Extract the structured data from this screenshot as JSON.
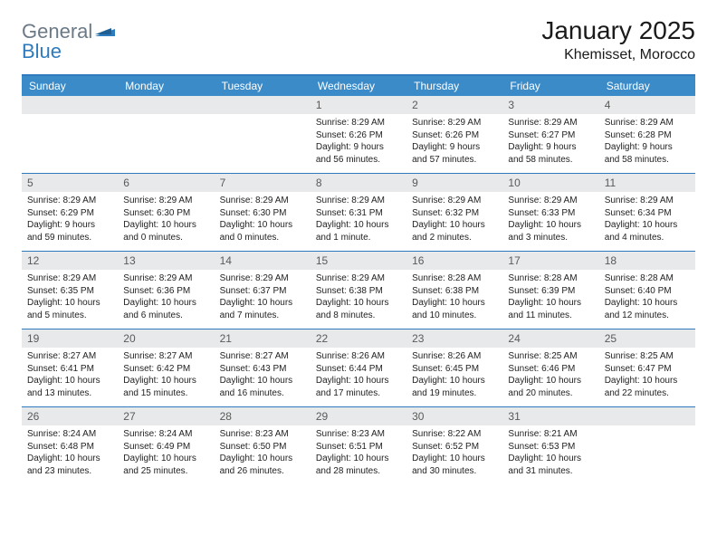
{
  "brand": {
    "part1": "General",
    "part2": "Blue"
  },
  "title": "January 2025",
  "location": "Khemisset, Morocco",
  "colors": {
    "header_bg": "#3b8bc8",
    "border": "#2d7bbd",
    "daynum_bg": "#e7e9eb",
    "text": "#222222",
    "daynum_text": "#5a5a5a",
    "brand_gray": "#6b7a86",
    "brand_blue": "#2d7bbd"
  },
  "weekdays": [
    "Sunday",
    "Monday",
    "Tuesday",
    "Wednesday",
    "Thursday",
    "Friday",
    "Saturday"
  ],
  "weeks": [
    {
      "days": [
        null,
        null,
        null,
        {
          "n": "1",
          "sr": "Sunrise: 8:29 AM",
          "ss": "Sunset: 6:26 PM",
          "d1": "Daylight: 9 hours",
          "d2": "and 56 minutes."
        },
        {
          "n": "2",
          "sr": "Sunrise: 8:29 AM",
          "ss": "Sunset: 6:26 PM",
          "d1": "Daylight: 9 hours",
          "d2": "and 57 minutes."
        },
        {
          "n": "3",
          "sr": "Sunrise: 8:29 AM",
          "ss": "Sunset: 6:27 PM",
          "d1": "Daylight: 9 hours",
          "d2": "and 58 minutes."
        },
        {
          "n": "4",
          "sr": "Sunrise: 8:29 AM",
          "ss": "Sunset: 6:28 PM",
          "d1": "Daylight: 9 hours",
          "d2": "and 58 minutes."
        }
      ]
    },
    {
      "days": [
        {
          "n": "5",
          "sr": "Sunrise: 8:29 AM",
          "ss": "Sunset: 6:29 PM",
          "d1": "Daylight: 9 hours",
          "d2": "and 59 minutes."
        },
        {
          "n": "6",
          "sr": "Sunrise: 8:29 AM",
          "ss": "Sunset: 6:30 PM",
          "d1": "Daylight: 10 hours",
          "d2": "and 0 minutes."
        },
        {
          "n": "7",
          "sr": "Sunrise: 8:29 AM",
          "ss": "Sunset: 6:30 PM",
          "d1": "Daylight: 10 hours",
          "d2": "and 0 minutes."
        },
        {
          "n": "8",
          "sr": "Sunrise: 8:29 AM",
          "ss": "Sunset: 6:31 PM",
          "d1": "Daylight: 10 hours",
          "d2": "and 1 minute."
        },
        {
          "n": "9",
          "sr": "Sunrise: 8:29 AM",
          "ss": "Sunset: 6:32 PM",
          "d1": "Daylight: 10 hours",
          "d2": "and 2 minutes."
        },
        {
          "n": "10",
          "sr": "Sunrise: 8:29 AM",
          "ss": "Sunset: 6:33 PM",
          "d1": "Daylight: 10 hours",
          "d2": "and 3 minutes."
        },
        {
          "n": "11",
          "sr": "Sunrise: 8:29 AM",
          "ss": "Sunset: 6:34 PM",
          "d1": "Daylight: 10 hours",
          "d2": "and 4 minutes."
        }
      ]
    },
    {
      "days": [
        {
          "n": "12",
          "sr": "Sunrise: 8:29 AM",
          "ss": "Sunset: 6:35 PM",
          "d1": "Daylight: 10 hours",
          "d2": "and 5 minutes."
        },
        {
          "n": "13",
          "sr": "Sunrise: 8:29 AM",
          "ss": "Sunset: 6:36 PM",
          "d1": "Daylight: 10 hours",
          "d2": "and 6 minutes."
        },
        {
          "n": "14",
          "sr": "Sunrise: 8:29 AM",
          "ss": "Sunset: 6:37 PM",
          "d1": "Daylight: 10 hours",
          "d2": "and 7 minutes."
        },
        {
          "n": "15",
          "sr": "Sunrise: 8:29 AM",
          "ss": "Sunset: 6:38 PM",
          "d1": "Daylight: 10 hours",
          "d2": "and 8 minutes."
        },
        {
          "n": "16",
          "sr": "Sunrise: 8:28 AM",
          "ss": "Sunset: 6:38 PM",
          "d1": "Daylight: 10 hours",
          "d2": "and 10 minutes."
        },
        {
          "n": "17",
          "sr": "Sunrise: 8:28 AM",
          "ss": "Sunset: 6:39 PM",
          "d1": "Daylight: 10 hours",
          "d2": "and 11 minutes."
        },
        {
          "n": "18",
          "sr": "Sunrise: 8:28 AM",
          "ss": "Sunset: 6:40 PM",
          "d1": "Daylight: 10 hours",
          "d2": "and 12 minutes."
        }
      ]
    },
    {
      "days": [
        {
          "n": "19",
          "sr": "Sunrise: 8:27 AM",
          "ss": "Sunset: 6:41 PM",
          "d1": "Daylight: 10 hours",
          "d2": "and 13 minutes."
        },
        {
          "n": "20",
          "sr": "Sunrise: 8:27 AM",
          "ss": "Sunset: 6:42 PM",
          "d1": "Daylight: 10 hours",
          "d2": "and 15 minutes."
        },
        {
          "n": "21",
          "sr": "Sunrise: 8:27 AM",
          "ss": "Sunset: 6:43 PM",
          "d1": "Daylight: 10 hours",
          "d2": "and 16 minutes."
        },
        {
          "n": "22",
          "sr": "Sunrise: 8:26 AM",
          "ss": "Sunset: 6:44 PM",
          "d1": "Daylight: 10 hours",
          "d2": "and 17 minutes."
        },
        {
          "n": "23",
          "sr": "Sunrise: 8:26 AM",
          "ss": "Sunset: 6:45 PM",
          "d1": "Daylight: 10 hours",
          "d2": "and 19 minutes."
        },
        {
          "n": "24",
          "sr": "Sunrise: 8:25 AM",
          "ss": "Sunset: 6:46 PM",
          "d1": "Daylight: 10 hours",
          "d2": "and 20 minutes."
        },
        {
          "n": "25",
          "sr": "Sunrise: 8:25 AM",
          "ss": "Sunset: 6:47 PM",
          "d1": "Daylight: 10 hours",
          "d2": "and 22 minutes."
        }
      ]
    },
    {
      "days": [
        {
          "n": "26",
          "sr": "Sunrise: 8:24 AM",
          "ss": "Sunset: 6:48 PM",
          "d1": "Daylight: 10 hours",
          "d2": "and 23 minutes."
        },
        {
          "n": "27",
          "sr": "Sunrise: 8:24 AM",
          "ss": "Sunset: 6:49 PM",
          "d1": "Daylight: 10 hours",
          "d2": "and 25 minutes."
        },
        {
          "n": "28",
          "sr": "Sunrise: 8:23 AM",
          "ss": "Sunset: 6:50 PM",
          "d1": "Daylight: 10 hours",
          "d2": "and 26 minutes."
        },
        {
          "n": "29",
          "sr": "Sunrise: 8:23 AM",
          "ss": "Sunset: 6:51 PM",
          "d1": "Daylight: 10 hours",
          "d2": "and 28 minutes."
        },
        {
          "n": "30",
          "sr": "Sunrise: 8:22 AM",
          "ss": "Sunset: 6:52 PM",
          "d1": "Daylight: 10 hours",
          "d2": "and 30 minutes."
        },
        {
          "n": "31",
          "sr": "Sunrise: 8:21 AM",
          "ss": "Sunset: 6:53 PM",
          "d1": "Daylight: 10 hours",
          "d2": "and 31 minutes."
        },
        null
      ]
    }
  ]
}
